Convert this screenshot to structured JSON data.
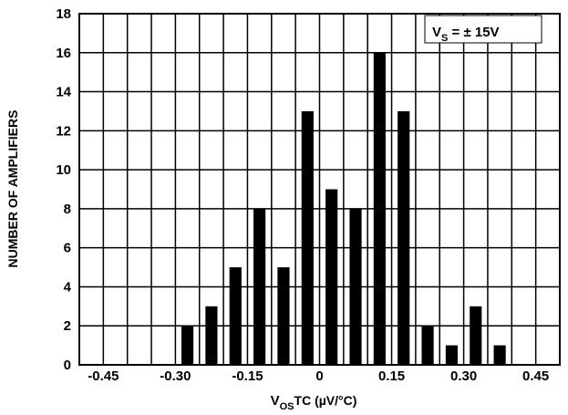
{
  "chart_data": {
    "type": "bar",
    "title": "",
    "xlabel": {
      "main": "V",
      "sub": "OS",
      "rest": "TC (µV/°C)"
    },
    "ylabel": "NUMBER OF AMPLIFIERS",
    "annotation": {
      "main": "V",
      "sub": "S",
      "rest": " = ± 15V"
    },
    "xlim": [
      -0.5,
      0.5
    ],
    "ylim": [
      0,
      18
    ],
    "grid": true,
    "x_ticks": [
      {
        "value": -0.45,
        "label": "-0.45"
      },
      {
        "value": -0.3,
        "label": "-0.30"
      },
      {
        "value": -0.15,
        "label": "-0.15"
      },
      {
        "value": 0,
        "label": "0"
      },
      {
        "value": 0.15,
        "label": "0.15"
      },
      {
        "value": 0.3,
        "label": "0.30"
      },
      {
        "value": 0.45,
        "label": "0.45"
      }
    ],
    "y_ticks": [
      {
        "value": 0,
        "label": "0"
      },
      {
        "value": 2,
        "label": "2"
      },
      {
        "value": 4,
        "label": "4"
      },
      {
        "value": 6,
        "label": "6"
      },
      {
        "value": 8,
        "label": "8"
      },
      {
        "value": 10,
        "label": "10"
      },
      {
        "value": 12,
        "label": "12"
      },
      {
        "value": 14,
        "label": "14"
      },
      {
        "value": 16,
        "label": "16"
      },
      {
        "value": 18,
        "label": "18"
      }
    ],
    "bar_width": 0.025,
    "bars": [
      {
        "x": -0.275,
        "value": 2
      },
      {
        "x": -0.225,
        "value": 3
      },
      {
        "x": -0.175,
        "value": 5
      },
      {
        "x": -0.125,
        "value": 8
      },
      {
        "x": -0.075,
        "value": 5
      },
      {
        "x": -0.025,
        "value": 13
      },
      {
        "x": 0.025,
        "value": 9
      },
      {
        "x": 0.075,
        "value": 8
      },
      {
        "x": 0.125,
        "value": 16
      },
      {
        "x": 0.175,
        "value": 13
      },
      {
        "x": 0.225,
        "value": 2
      },
      {
        "x": 0.275,
        "value": 1
      },
      {
        "x": 0.325,
        "value": 3
      },
      {
        "x": 0.375,
        "value": 1
      }
    ],
    "colors": {
      "bar": "#000000",
      "grid": "#000000",
      "background": "#ffffff"
    }
  }
}
